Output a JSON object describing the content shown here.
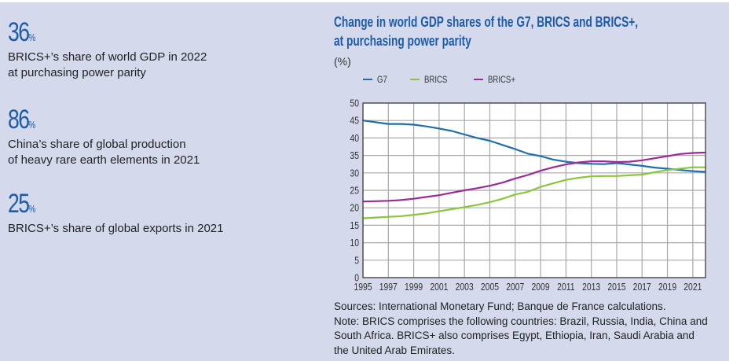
{
  "stats": [
    {
      "value": "36",
      "unit": "%",
      "lines": [
        "BRICS+’s share of world GDP in 2022",
        "at purchasing power parity"
      ]
    },
    {
      "value": "86",
      "unit": "%",
      "lines": [
        "China’s share of global production",
        "of heavy rare earth elements in 2021"
      ]
    },
    {
      "value": "25",
      "unit": "%",
      "lines": [
        "BRICS+’s share of global exports in 2021"
      ]
    }
  ],
  "notes": {
    "sources": "Sources: International Monetary Fund; Banque de France calculations.",
    "note": "Note: BRICS comprises the following countries: Brazil, Russia, India, China and South Africa. BRICS+ also comprises Egypt, Ethiopia, Iran, Saudi Arabia and the United Arab Emirates."
  },
  "chart_data": {
    "type": "line",
    "title_lines": [
      "Change in world GDP shares of the G7, BRICS and BRICS+,",
      "at purchasing power parity"
    ],
    "ylabel": "(%)",
    "xlabel": "",
    "legend_position": "top-left",
    "grid": true,
    "xlim": [
      1995,
      2022
    ],
    "ylim": [
      0,
      50
    ],
    "yticks": [
      0,
      5,
      10,
      15,
      20,
      25,
      30,
      35,
      40,
      45,
      50
    ],
    "xticks": [
      "1995",
      "1997",
      "1999",
      "2001",
      "2003",
      "2005",
      "2007",
      "2009",
      "2011",
      "2013",
      "2015",
      "2017",
      "2019",
      "2021"
    ],
    "x": [
      1995,
      1996,
      1997,
      1998,
      1999,
      2000,
      2001,
      2002,
      2003,
      2004,
      2005,
      2006,
      2007,
      2008,
      2009,
      2010,
      2011,
      2012,
      2013,
      2014,
      2015,
      2016,
      2017,
      2018,
      2019,
      2020,
      2021,
      2022
    ],
    "series": [
      {
        "name": "G7",
        "color": "#1f6fa8",
        "values": [
          45,
          44.5,
          44,
          44,
          43.8,
          43.3,
          42.7,
          42,
          41,
          40,
          39.2,
          38,
          36.8,
          35.5,
          34.8,
          33.8,
          33.2,
          32.8,
          32.6,
          32.5,
          32.8,
          32.4,
          32,
          31.5,
          31.2,
          30.8,
          30.5,
          30.3
        ]
      },
      {
        "name": "BRICS",
        "color": "#8cc63f",
        "values": [
          17,
          17.2,
          17.4,
          17.6,
          18,
          18.4,
          19,
          19.6,
          20.2,
          20.8,
          21.6,
          22.6,
          23.8,
          24.6,
          26,
          27,
          28,
          28.6,
          29,
          29.1,
          29.1,
          29.3,
          29.5,
          30.2,
          30.8,
          31.2,
          31.6,
          31.6
        ]
      },
      {
        "name": "BRICS+",
        "color": "#9b2a9b",
        "values": [
          21.8,
          21.9,
          22,
          22.2,
          22.6,
          23.1,
          23.6,
          24.3,
          25,
          25.6,
          26.3,
          27.2,
          28.4,
          29.4,
          30.6,
          31.6,
          32.4,
          33,
          33.3,
          33.3,
          33.1,
          33.2,
          33.6,
          34.2,
          34.8,
          35.4,
          35.7,
          35.8
        ]
      }
    ]
  }
}
